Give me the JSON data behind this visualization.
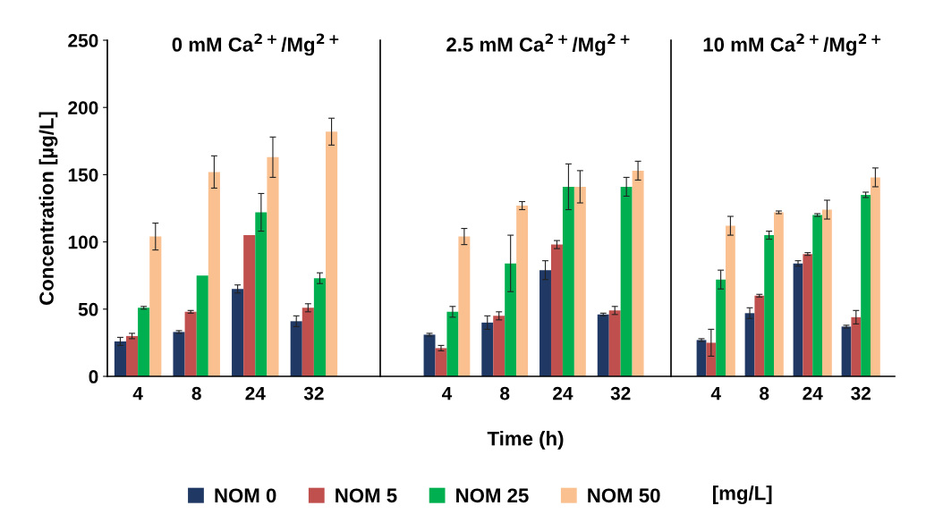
{
  "chart_data": [
    {
      "type": "bar",
      "title": "0 mM Ca$^{2+}$/Mg$^{2+}$",
      "ylabel": "Concentration [µg/L]",
      "categories": [
        "4",
        "8",
        "24",
        "32"
      ],
      "ylim": [
        0,
        250
      ],
      "yticks": [
        0,
        50,
        100,
        150,
        200,
        250
      ],
      "grid": false,
      "legend": "bottom",
      "annotations": [
        "[mg/L]"
      ],
      "series": [
        {
          "name": "NOM 0",
          "color": "#203864",
          "values": [
            26,
            33,
            65,
            41
          ],
          "errors": [
            3,
            1,
            3,
            4
          ]
        },
        {
          "name": "NOM 5",
          "color": "#c0504d",
          "values": [
            30,
            48,
            105,
            51
          ],
          "errors": [
            2,
            1,
            null,
            3
          ]
        },
        {
          "name": "NOM 25",
          "color": "#00b050",
          "values": [
            51,
            75,
            122,
            73
          ],
          "errors": [
            1,
            null,
            14,
            4
          ]
        },
        {
          "name": "NOM 50",
          "color": "#fac090",
          "values": [
            104,
            152,
            163,
            182
          ],
          "errors": [
            10,
            12,
            15,
            10
          ]
        }
      ]
    },
    {
      "type": "bar",
      "title": "2.5 mM Ca$^{2+}$/Mg$^{2+}$",
      "xlabel": "Time (h)",
      "categories": [
        "4",
        "8",
        "24",
        "32"
      ],
      "ylim": [
        0,
        250
      ],
      "grid": false,
      "tick_labels": "x",
      "series": [
        {
          "color": "#203864",
          "values": [
            31,
            40,
            79,
            46
          ],
          "errors": [
            1,
            5,
            7,
            1
          ]
        },
        {
          "color": "#c0504d",
          "values": [
            21,
            45,
            98,
            49
          ],
          "errors": [
            2,
            3,
            3,
            3
          ]
        },
        {
          "color": "#00b050",
          "values": [
            48,
            84,
            141,
            141
          ],
          "errors": [
            4,
            21,
            17,
            7
          ]
        },
        {
          "color": "#fac090",
          "values": [
            104,
            127,
            141,
            153
          ],
          "errors": [
            6,
            3,
            12,
            7
          ]
        }
      ]
    },
    {
      "type": "bar",
      "title": "10 mM Ca$^{2+}$/Mg$^{2+}$",
      "categories": [
        "4",
        "8",
        "24",
        "32"
      ],
      "ylim": [
        0,
        250
      ],
      "grid": false,
      "tick_labels": "x",
      "series": [
        {
          "color": "#203864",
          "values": [
            27,
            47,
            84,
            37
          ],
          "errors": [
            1,
            4,
            2,
            1
          ]
        },
        {
          "color": "#c0504d",
          "values": [
            25,
            60,
            91,
            44
          ],
          "errors": [
            10,
            1,
            1,
            5
          ]
        },
        {
          "color": "#00b050",
          "values": [
            72,
            105,
            120,
            135
          ],
          "errors": [
            7,
            3,
            1,
            2
          ]
        },
        {
          "color": "#fac090",
          "values": [
            112,
            122,
            124,
            148
          ],
          "errors": [
            7,
            1,
            7,
            7
          ]
        }
      ]
    }
  ]
}
